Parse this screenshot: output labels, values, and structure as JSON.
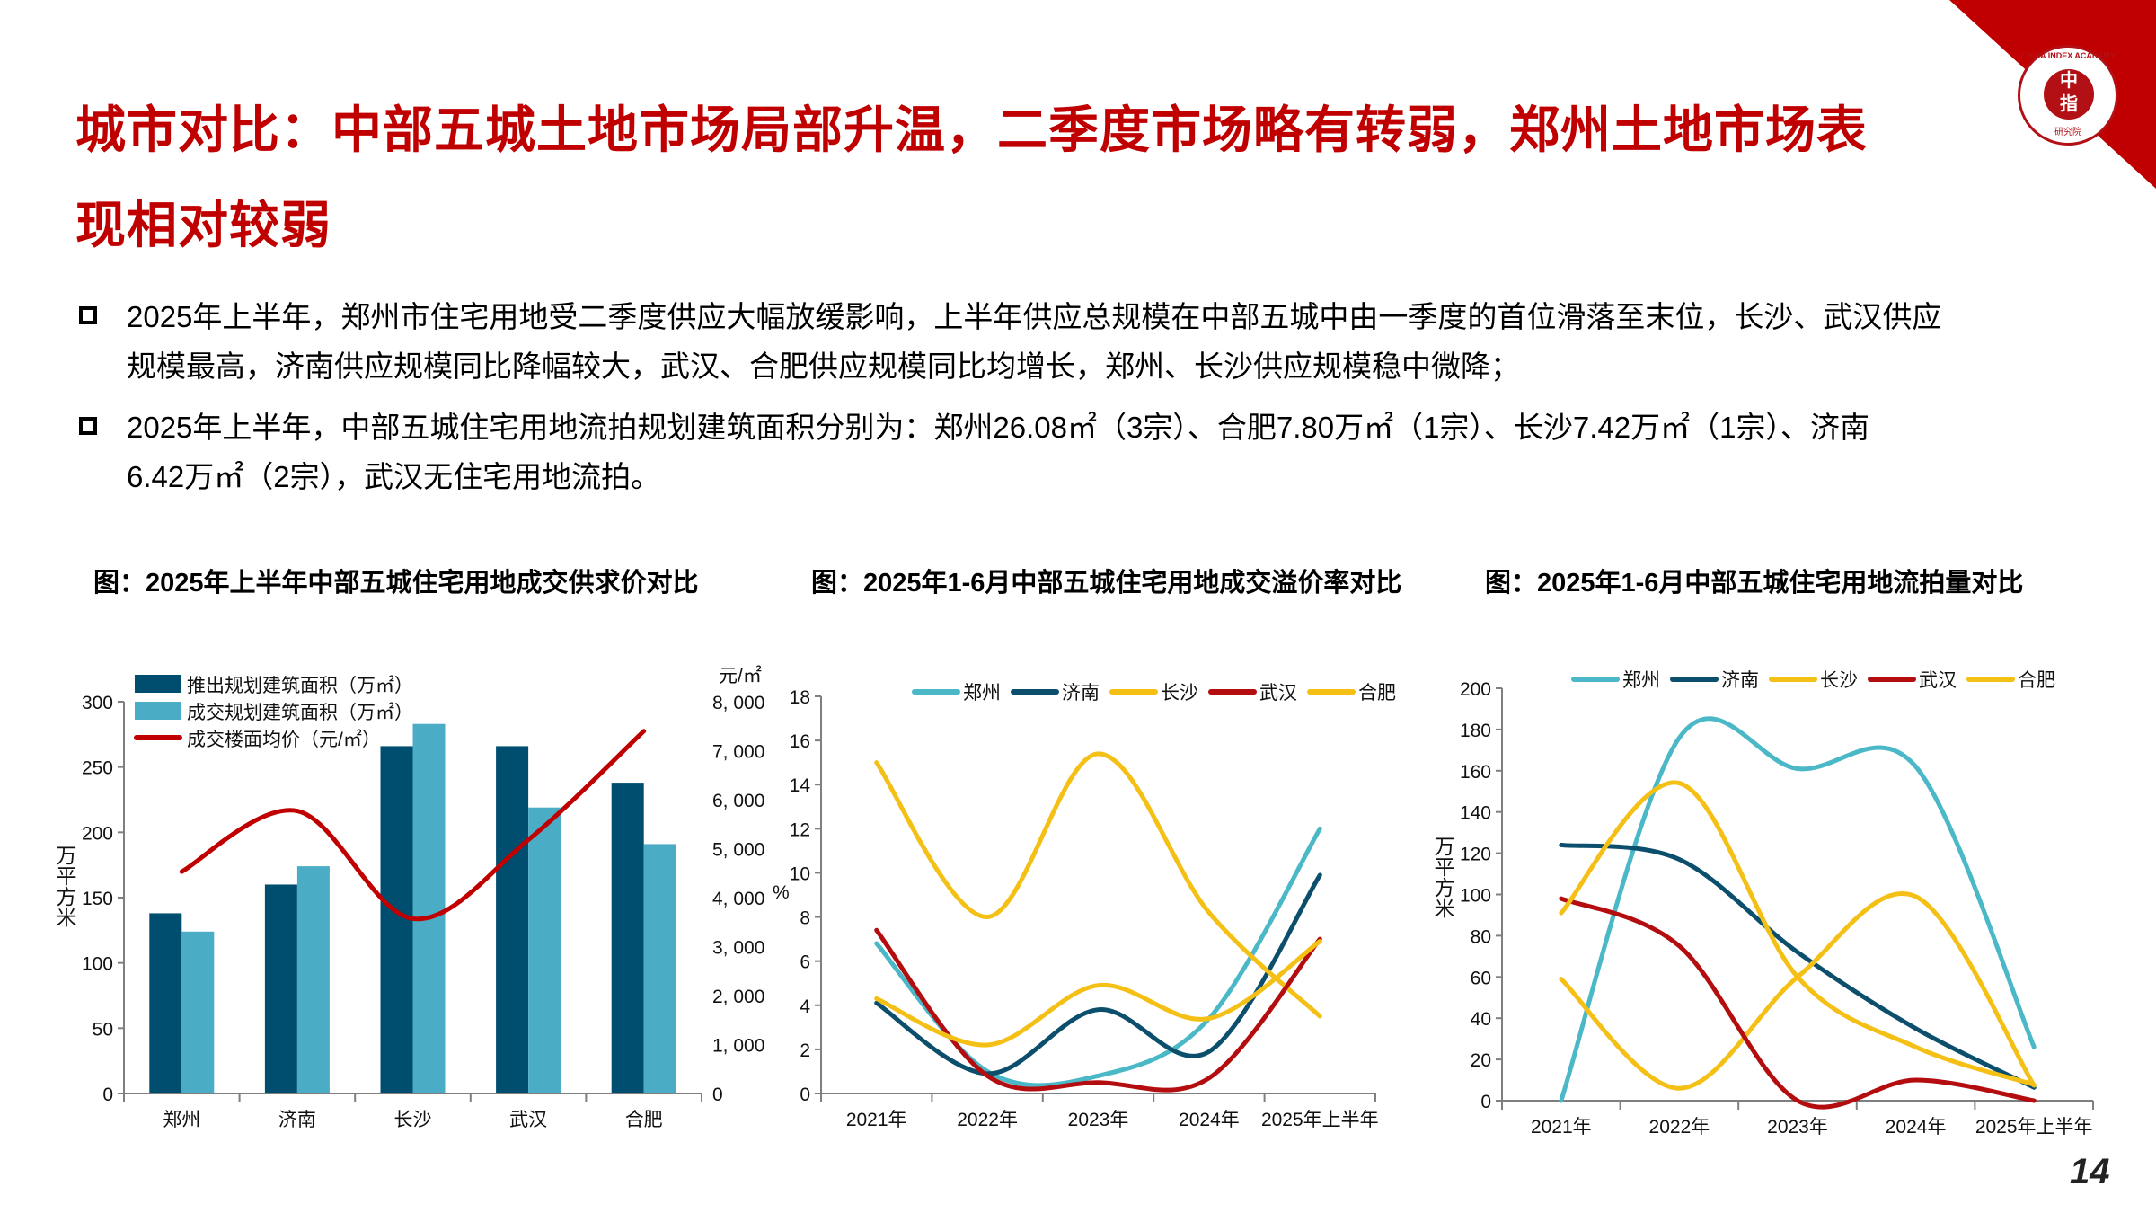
{
  "header": {
    "title": "城市对比：中部五城土地市场局部升温，二季度市场略有转弱，郑州土地市场表现相对较弱",
    "logo_text": {
      "ring": "CHINA INDEX ACADEMY",
      "center_top": "中",
      "center_bottom": "指",
      "bottom": "研究院"
    },
    "accent_color": "#c00000"
  },
  "bullets": [
    {
      "lines": [
        "2025年上半年，郑州市住宅用地受二季度供应大幅放缓影响，上半年供应总规模在中部五城中由一季度的首位滑落至末位，长沙、武汉供应",
        "规模最高，济南供应规模同比降幅较大，武汉、合肥供应规模同比均增长，郑州、长沙供应规模稳中微降；"
      ]
    },
    {
      "lines": [
        "2025年上半年，中部五城住宅用地流拍规划建筑面积分别为：郑州26.08㎡（3宗）、合肥7.80万㎡（1宗）、长沙7.42万㎡（1宗）、济南",
        "6.42万㎡（2宗），武汉无住宅用地流拍。"
      ]
    }
  ],
  "page_number": "14",
  "chart_data": [
    {
      "type": "bar",
      "title": "图：2025年上半年中部五城住宅用地成交供求价对比",
      "categories": [
        "郑州",
        "济南",
        "长沙",
        "武汉",
        "合肥"
      ],
      "ylabel": "万平方米",
      "y2label": "元/㎡",
      "ylim": [
        0,
        300
      ],
      "ystep": 50,
      "y2lim": [
        0,
        8000
      ],
      "y2step": 1000,
      "y2_tick_labels": [
        "0",
        "1, 000",
        "2, 000",
        "3, 000",
        "4, 000",
        "5, 000",
        "6, 000",
        "7, 000",
        "8, 000"
      ],
      "legend_position": "top-left",
      "series": [
        {
          "name": "推出规划建筑面积（万㎡）",
          "kind": "bar",
          "axis": "left",
          "color": "#004e6f",
          "values": [
            138,
            160,
            266,
            266,
            238
          ]
        },
        {
          "name": "成交规划建筑面积（万㎡）",
          "kind": "bar",
          "axis": "left",
          "color": "#4bacc6",
          "values": [
            124,
            174,
            283,
            219,
            191
          ]
        },
        {
          "name": "成交楼面均价（元/㎡）",
          "kind": "line",
          "axis": "right",
          "color": "#c00000",
          "values": [
            4530,
            5770,
            3570,
            5180,
            7400
          ]
        }
      ]
    },
    {
      "type": "line",
      "title": "图：2025年1-6月中部五城住宅用地成交溢价率对比",
      "categories": [
        "2021年",
        "2022年",
        "2023年",
        "2024年",
        "2025年上半年"
      ],
      "ylabel": "%",
      "ylim": [
        0,
        18
      ],
      "ystep": 2,
      "legend_position": "top",
      "series": [
        {
          "name": "郑州",
          "color": "#4bb8c8",
          "values": [
            6.8,
            1.0,
            0.8,
            3.4,
            12.0
          ]
        },
        {
          "name": "济南",
          "color": "#0b4f6c",
          "values": [
            4.1,
            0.9,
            3.8,
            1.9,
            9.9
          ]
        },
        {
          "name": "长沙",
          "color": "#f5c016",
          "values": [
            15.0,
            8.0,
            15.4,
            8.2,
            3.5
          ]
        },
        {
          "name": "武汉",
          "color": "#b40d10",
          "values": [
            7.4,
            0.8,
            0.5,
            0.7,
            7.0
          ]
        },
        {
          "name": "合肥",
          "color": "#f5c016",
          "values": [
            4.3,
            2.2,
            4.9,
            3.4,
            6.9
          ]
        }
      ]
    },
    {
      "type": "line",
      "title": "图：2025年1-6月中部五城住宅用地流拍量对比",
      "categories": [
        "2021年",
        "2022年",
        "2023年",
        "2024年",
        "2025年上半年"
      ],
      "ylabel": "万平方米",
      "ylim": [
        0,
        200
      ],
      "ystep": 20,
      "legend_position": "top",
      "series": [
        {
          "name": "郑州",
          "color": "#4bb8c8",
          "values": [
            0,
            176,
            161,
            162,
            26.08
          ]
        },
        {
          "name": "济南",
          "color": "#0b4f6c",
          "values": [
            124,
            117,
            72,
            35,
            6.42
          ]
        },
        {
          "name": "长沙",
          "color": "#f5c016",
          "values": [
            59,
            6,
            60,
            99,
            7.42
          ]
        },
        {
          "name": "武汉",
          "color": "#b40d10",
          "values": [
            98,
            75,
            0,
            10,
            0
          ]
        },
        {
          "name": "合肥",
          "color": "#f5c016",
          "values": [
            91,
            154,
            60,
            26,
            7.8
          ]
        }
      ]
    }
  ]
}
